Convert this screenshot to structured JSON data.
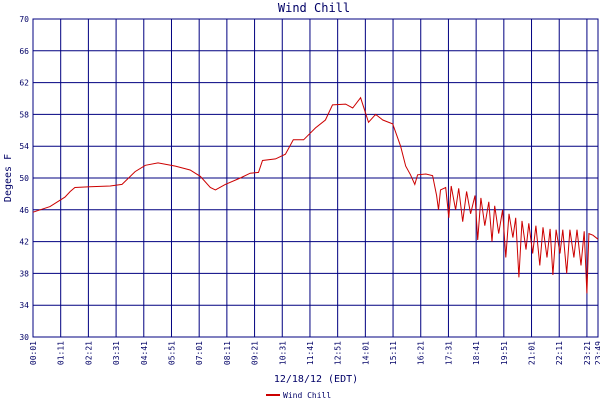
{
  "chart_data": {
    "type": "line",
    "title": "Wind Chill",
    "xlabel": "12/18/12 (EDT)",
    "ylabel": "Degees F",
    "x": [
      1,
      44,
      82,
      95,
      107,
      145,
      196,
      226,
      259,
      285,
      317,
      361,
      398,
      424,
      449,
      462,
      487,
      525,
      550,
      571,
      581,
      614,
      639,
      659,
      685,
      715,
      740,
      758,
      791,
      809,
      829,
      849,
      867,
      885,
      910,
      930,
      943,
      955,
      966,
      973,
      994,
      1011,
      1021,
      1026,
      1031,
      1044,
      1052,
      1058,
      1069,
      1077,
      1087,
      1097,
      1107,
      1118,
      1125,
      1133,
      1143,
      1153,
      1161,
      1168,
      1178,
      1188,
      1196,
      1204,
      1214,
      1221,
      1229,
      1237,
      1247,
      1254,
      1264,
      1272,
      1282,
      1290,
      1300,
      1308,
      1315,
      1323,
      1333,
      1340,
      1350,
      1358,
      1368,
      1376,
      1386,
      1394,
      1401,
      1406,
      1416,
      1429
    ],
    "series": [
      {
        "name": "Wind Chill",
        "color": "#cc0000",
        "values": [
          45.7,
          46.4,
          47.6,
          48.3,
          48.8,
          48.9,
          49,
          49.2,
          50.8,
          51.6,
          51.9,
          51.5,
          51,
          50.2,
          48.8,
          48.5,
          49.2,
          50,
          50.6,
          50.7,
          52.2,
          52.4,
          53,
          54.8,
          54.8,
          56.3,
          57.3,
          59.2,
          59.3,
          58.8,
          60.1,
          57,
          58,
          57.3,
          56.8,
          54,
          51.5,
          50.4,
          49.2,
          50.4,
          50.5,
          50.3,
          47.8,
          46,
          48.5,
          48.8,
          45,
          49,
          46,
          48.7,
          44.5,
          48.3,
          45.5,
          47.8,
          42.2,
          47.5,
          44,
          47,
          42,
          46.5,
          43,
          46,
          40,
          45.5,
          42.5,
          45,
          37.5,
          44.6,
          41,
          44.3,
          40.5,
          44,
          39,
          43.8,
          40,
          43.6,
          37.8,
          43.5,
          40.5,
          43.5,
          38,
          43.5,
          40,
          43.5,
          39,
          43.3,
          35.5,
          43,
          42.8,
          42.3
        ]
      }
    ],
    "xlim": [
      1,
      1429
    ],
    "xticks": [
      {
        "value": 1,
        "label": "00:01"
      },
      {
        "value": 71,
        "label": "01:11"
      },
      {
        "value": 141,
        "label": "02:21"
      },
      {
        "value": 211,
        "label": "03:31"
      },
      {
        "value": 281,
        "label": "04:41"
      },
      {
        "value": 351,
        "label": "05:51"
      },
      {
        "value": 421,
        "label": "07:01"
      },
      {
        "value": 491,
        "label": "08:11"
      },
      {
        "value": 561,
        "label": "09:21"
      },
      {
        "value": 631,
        "label": "10:31"
      },
      {
        "value": 701,
        "label": "11:41"
      },
      {
        "value": 771,
        "label": "12:51"
      },
      {
        "value": 841,
        "label": "14:01"
      },
      {
        "value": 911,
        "label": "15:11"
      },
      {
        "value": 981,
        "label": "16:21"
      },
      {
        "value": 1051,
        "label": "17:31"
      },
      {
        "value": 1121,
        "label": "18:41"
      },
      {
        "value": 1191,
        "label": "19:51"
      },
      {
        "value": 1261,
        "label": "21:01"
      },
      {
        "value": 1331,
        "label": "22:11"
      },
      {
        "value": 1401,
        "label": "23:21"
      },
      {
        "value": 1429,
        "label": "23:49"
      }
    ],
    "ylim": [
      30,
      70
    ],
    "yticks": [
      30,
      34,
      38,
      42,
      46,
      50,
      54,
      58,
      62,
      66,
      70
    ],
    "grid": true,
    "legend": "bottom"
  }
}
